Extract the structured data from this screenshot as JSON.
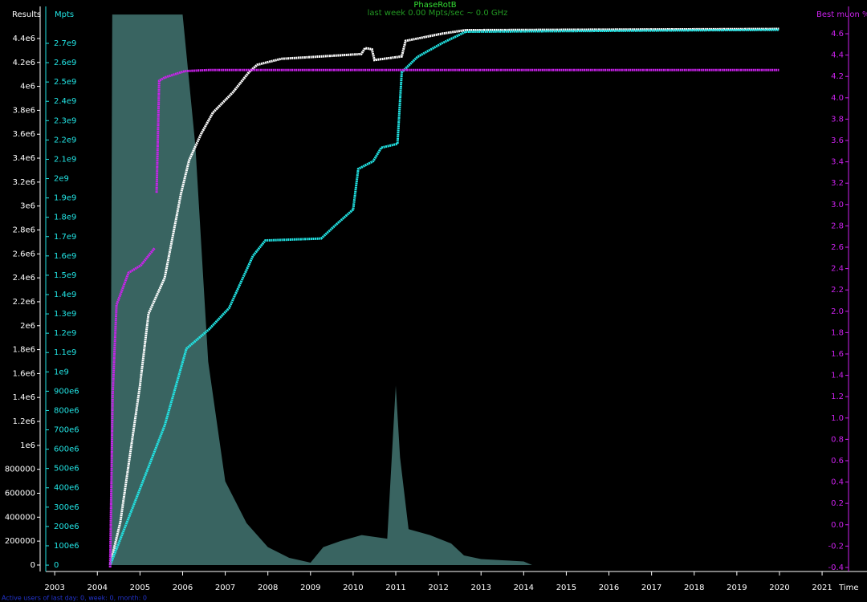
{
  "chart_data": {
    "type": "line",
    "title": "PhaseRotB",
    "subtitle": "last week 0.00 Mpts/sec ~ 0.0 GHz",
    "footer": "Active users of last day: 0, week: 0, month: 0",
    "xlabel": "Time",
    "xlim": [
      2002.79,
      2021.3
    ],
    "xticks": [
      2003,
      2004,
      2005,
      2006,
      2007,
      2008,
      2009,
      2010,
      2011,
      2012,
      2013,
      2014,
      2015,
      2016,
      2017,
      2018,
      2019,
      2020,
      2021
    ],
    "ylim": [
      -54000,
      4668000
    ],
    "yticks": [
      0,
      200000,
      400000,
      600000,
      800000,
      {
        "value": 1000000,
        "label": "1e6"
      },
      {
        "value": 1200000,
        "label": "1.2e6"
      },
      {
        "value": 1400000,
        "label": "1.4e6"
      },
      {
        "value": 1600000,
        "label": "1.6e6"
      },
      {
        "value": 1800000,
        "label": "1.8e6"
      },
      {
        "value": 2000000,
        "label": "2e6"
      },
      {
        "value": 2200000,
        "label": "2.2e6"
      },
      {
        "value": 2400000,
        "label": "2.4e6"
      },
      {
        "value": 2600000,
        "label": "2.6e6"
      },
      {
        "value": 2800000,
        "label": "2.8e6"
      },
      {
        "value": 3000000,
        "label": "3e6"
      },
      {
        "value": 3200000,
        "label": "3.2e6"
      },
      {
        "value": 3400000,
        "label": "3.4e6"
      },
      {
        "value": 3600000,
        "label": "3.6e6"
      },
      {
        "value": 3800000,
        "label": "3.8e6"
      },
      {
        "value": 4000000,
        "label": "4e6"
      },
      {
        "value": 4200000,
        "label": "4.2e6"
      },
      {
        "value": 4400000,
        "label": "4.4e6"
      }
    ],
    "y2lim": [
      -33000000,
      2891000000
    ],
    "y2ticks": [
      0,
      {
        "value": 100000000,
        "label": "100e6"
      },
      {
        "value": 200000000,
        "label": "200e6"
      },
      {
        "value": 300000000,
        "label": "300e6"
      },
      {
        "value": 400000000,
        "label": "400e6"
      },
      {
        "value": 500000000,
        "label": "500e6"
      },
      {
        "value": 600000000,
        "label": "600e6"
      },
      {
        "value": 700000000,
        "label": "700e6"
      },
      {
        "value": 800000000,
        "label": "800e6"
      },
      {
        "value": 900000000,
        "label": "900e6"
      },
      {
        "value": 1000000000,
        "label": "1e9"
      },
      {
        "value": 1100000000,
        "label": "1.1e9"
      },
      {
        "value": 1200000000,
        "label": "1.2e9"
      },
      {
        "value": 1300000000,
        "label": "1.3e9"
      },
      {
        "value": 1400000000,
        "label": "1.4e9"
      },
      {
        "value": 1500000000,
        "label": "1.5e9"
      },
      {
        "value": 1600000000,
        "label": "1.6e9"
      },
      {
        "value": 1700000000,
        "label": "1.7e9"
      },
      {
        "value": 1800000000,
        "label": "1.8e9"
      },
      {
        "value": 1900000000,
        "label": "1.9e9"
      },
      {
        "value": 2000000000,
        "label": "2e9"
      },
      {
        "value": 2100000000,
        "label": "2.1e9"
      },
      {
        "value": 2200000000,
        "label": "2.2e9"
      },
      {
        "value": 2300000000,
        "label": "2.3e9"
      },
      {
        "value": 2400000000,
        "label": "2.4e9"
      },
      {
        "value": 2500000000,
        "label": "2.5e9"
      },
      {
        "value": 2600000000,
        "label": "2.6e9"
      },
      {
        "value": 2700000000,
        "label": "2.7e9"
      }
    ],
    "y3lim": [
      -0.438,
      4.856
    ],
    "y3ticks": [
      -0.4,
      -0.2,
      {
        "value": 0,
        "label": "0.0"
      },
      0.2,
      0.4,
      0.6,
      0.8,
      {
        "value": 1,
        "label": "1.0"
      },
      1.2,
      1.4,
      1.6,
      1.8,
      {
        "value": 2,
        "label": "2.0"
      },
      2.2,
      2.4,
      2.6,
      2.8,
      {
        "value": 3,
        "label": "3.0"
      },
      3.2,
      3.4,
      3.6,
      3.8,
      {
        "value": 4,
        "label": "4.0"
      },
      4.2,
      4.4,
      4.6
    ],
    "activity": {
      "color": "#3f6f6c",
      "axis": "y",
      "x": [
        2004.3,
        2004.35,
        2004.6,
        2005.0,
        2005.5,
        2006.0,
        2006.3,
        2006.6,
        2007.0,
        2007.5,
        2008.0,
        2008.5,
        2009.0,
        2009.3,
        2009.7,
        2010.2,
        2010.8,
        2011.0,
        2011.1,
        2011.3,
        2011.8,
        2012.3,
        2012.6,
        2013.0,
        2013.5,
        2014.0,
        2014.2
      ],
      "values": [
        0,
        4600000,
        4600000,
        4600000,
        4600000,
        4600000,
        3500000,
        1700000,
        700000,
        350000,
        150000,
        60000,
        20000,
        150000,
        200000,
        250000,
        220000,
        1500000,
        900000,
        300000,
        250000,
        180000,
        80000,
        50000,
        40000,
        30000,
        0
      ]
    },
    "series": [
      {
        "name": "Results",
        "color": "#ffffff",
        "axis": "y",
        "x": [
          2004.3,
          2004.54,
          2005.0,
          2005.2,
          2005.58,
          2005.96,
          2006.15,
          2006.43,
          2006.71,
          2007.18,
          2007.56,
          2007.75,
          2008.31,
          2009.25,
          2010.19,
          2010.28,
          2010.44,
          2010.5,
          2011.14,
          2011.23,
          2012.08,
          2012.64,
          2019.99
        ],
        "values": [
          0,
          360000,
          1500000,
          2100000,
          2400000,
          3100000,
          3380000,
          3600000,
          3780000,
          3950000,
          4120000,
          4180000,
          4230000,
          4250000,
          4270000,
          4320000,
          4310000,
          4220000,
          4250000,
          4380000,
          4440000,
          4470000,
          4480000
        ]
      },
      {
        "name": "Mpts",
        "color": "#22e5e5",
        "axis": "y2",
        "x": [
          2004.3,
          2004.92,
          2005.58,
          2006.09,
          2006.62,
          2007.09,
          2007.65,
          2007.94,
          2009.25,
          2009.59,
          2010.0,
          2010.12,
          2010.47,
          2010.66,
          2011.04,
          2011.14,
          2011.51,
          2012.08,
          2012.64,
          2019.99
        ],
        "values": [
          0,
          349000000,
          723000000,
          1120000000,
          1220000000,
          1330000000,
          1600000000,
          1680000000,
          1690000000,
          1760000000,
          1840000000,
          2050000000,
          2090000000,
          2160000000,
          2180000000,
          2550000000,
          2630000000,
          2700000000,
          2760000000,
          2770000000
        ]
      },
      {
        "name": "Best muon %",
        "color": "#cc22ee",
        "axis": "y3",
        "x": [
          2004.3,
          2004.36,
          2004.45,
          2004.73,
          2005.02,
          2005.34,
          2005.36,
          2005.39,
          2005.45,
          2005.58,
          2006.05,
          2006.62,
          2019.99
        ],
        "values": [
          -0.4,
          1.23,
          2.06,
          2.36,
          2.43,
          2.59,
          null,
          3.11,
          4.16,
          4.19,
          4.25,
          4.26,
          4.26
        ]
      }
    ]
  }
}
